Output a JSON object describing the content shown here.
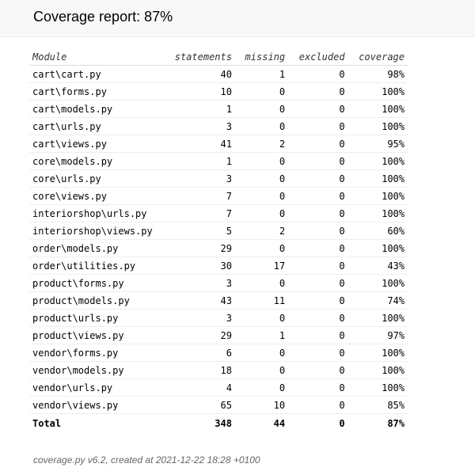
{
  "header": {
    "title": "Coverage report: 87%"
  },
  "table": {
    "columns": [
      "Module",
      "statements",
      "missing",
      "excluded",
      "coverage"
    ],
    "rows": [
      {
        "module": "cart\\cart.py",
        "statements": "40",
        "missing": "1",
        "excluded": "0",
        "coverage": "98%"
      },
      {
        "module": "cart\\forms.py",
        "statements": "10",
        "missing": "0",
        "excluded": "0",
        "coverage": "100%"
      },
      {
        "module": "cart\\models.py",
        "statements": "1",
        "missing": "0",
        "excluded": "0",
        "coverage": "100%"
      },
      {
        "module": "cart\\urls.py",
        "statements": "3",
        "missing": "0",
        "excluded": "0",
        "coverage": "100%"
      },
      {
        "module": "cart\\views.py",
        "statements": "41",
        "missing": "2",
        "excluded": "0",
        "coverage": "95%"
      },
      {
        "module": "core\\models.py",
        "statements": "1",
        "missing": "0",
        "excluded": "0",
        "coverage": "100%"
      },
      {
        "module": "core\\urls.py",
        "statements": "3",
        "missing": "0",
        "excluded": "0",
        "coverage": "100%"
      },
      {
        "module": "core\\views.py",
        "statements": "7",
        "missing": "0",
        "excluded": "0",
        "coverage": "100%"
      },
      {
        "module": "interiorshop\\urls.py",
        "statements": "7",
        "missing": "0",
        "excluded": "0",
        "coverage": "100%"
      },
      {
        "module": "interiorshop\\views.py",
        "statements": "5",
        "missing": "2",
        "excluded": "0",
        "coverage": "60%"
      },
      {
        "module": "order\\models.py",
        "statements": "29",
        "missing": "0",
        "excluded": "0",
        "coverage": "100%"
      },
      {
        "module": "order\\utilities.py",
        "statements": "30",
        "missing": "17",
        "excluded": "0",
        "coverage": "43%"
      },
      {
        "module": "product\\forms.py",
        "statements": "3",
        "missing": "0",
        "excluded": "0",
        "coverage": "100%"
      },
      {
        "module": "product\\models.py",
        "statements": "43",
        "missing": "11",
        "excluded": "0",
        "coverage": "74%"
      },
      {
        "module": "product\\urls.py",
        "statements": "3",
        "missing": "0",
        "excluded": "0",
        "coverage": "100%"
      },
      {
        "module": "product\\views.py",
        "statements": "29",
        "missing": "1",
        "excluded": "0",
        "coverage": "97%"
      },
      {
        "module": "vendor\\forms.py",
        "statements": "6",
        "missing": "0",
        "excluded": "0",
        "coverage": "100%"
      },
      {
        "module": "vendor\\models.py",
        "statements": "18",
        "missing": "0",
        "excluded": "0",
        "coverage": "100%"
      },
      {
        "module": "vendor\\urls.py",
        "statements": "4",
        "missing": "0",
        "excluded": "0",
        "coverage": "100%"
      },
      {
        "module": "vendor\\views.py",
        "statements": "65",
        "missing": "10",
        "excluded": "0",
        "coverage": "85%"
      }
    ],
    "total": {
      "label": "Total",
      "statements": "348",
      "missing": "44",
      "excluded": "0",
      "coverage": "87%"
    }
  },
  "footer": {
    "text": "coverage.py v6.2, created at 2021-12-22 18:28 +0100"
  }
}
